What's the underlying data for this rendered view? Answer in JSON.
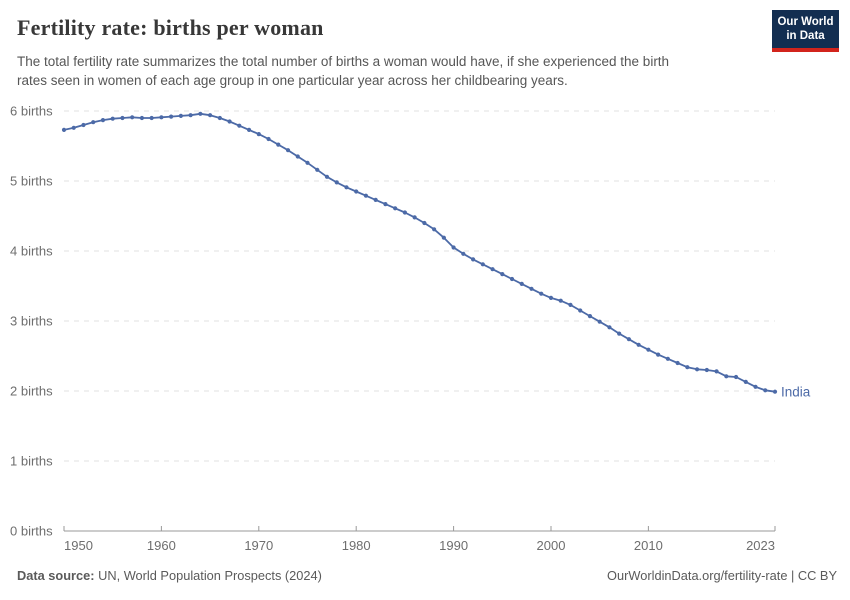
{
  "header": {
    "title": "Fertility rate: births per woman",
    "subtitle_line1": "The total fertility rate summarizes the total number of births a woman would have, if she experienced the birth",
    "subtitle_line2": "rates seen in women of each age group in one particular year across her childbearing years.",
    "logo": {
      "line1": "Our World",
      "line2": "in Data"
    }
  },
  "footer": {
    "source_label": "Data source:",
    "source_value": "UN, World Population Prospects (2024)",
    "credit": "OurWorldinData.org/fertility-rate | CC BY"
  },
  "chart_data": {
    "type": "line",
    "title": "Fertility rate: births per woman",
    "xlabel": "",
    "ylabel": "births",
    "xlim": [
      1950,
      2023
    ],
    "ylim": [
      0,
      6
    ],
    "grid": "horizontal-dashed",
    "legend_position": "end-of-line-label",
    "xticks": [
      1950,
      1960,
      1970,
      1980,
      1990,
      2000,
      2010,
      2023
    ],
    "yticks": [
      {
        "value": 0,
        "label": "0 births"
      },
      {
        "value": 1,
        "label": "1 births"
      },
      {
        "value": 2,
        "label": "2 births"
      },
      {
        "value": 3,
        "label": "3 births"
      },
      {
        "value": 4,
        "label": "4 births"
      },
      {
        "value": 5,
        "label": "5 births"
      },
      {
        "value": 6,
        "label": "6 births"
      }
    ],
    "colors": {
      "line": "#4c6aa7",
      "grid": "#e2e2e2",
      "axis": "#999999",
      "tick_text": "#6e6e6e",
      "logo_bg": "#132e51",
      "logo_accent": "#d2241c"
    },
    "series": [
      {
        "name": "India",
        "color": "#4c6aa7",
        "years": [
          1950,
          1951,
          1952,
          1953,
          1954,
          1955,
          1956,
          1957,
          1958,
          1959,
          1960,
          1961,
          1962,
          1963,
          1964,
          1965,
          1966,
          1967,
          1968,
          1969,
          1970,
          1971,
          1972,
          1973,
          1974,
          1975,
          1976,
          1977,
          1978,
          1979,
          1980,
          1981,
          1982,
          1983,
          1984,
          1985,
          1986,
          1987,
          1988,
          1989,
          1990,
          1991,
          1992,
          1993,
          1994,
          1995,
          1996,
          1997,
          1998,
          1999,
          2000,
          2001,
          2002,
          2003,
          2004,
          2005,
          2006,
          2007,
          2008,
          2009,
          2010,
          2011,
          2012,
          2013,
          2014,
          2015,
          2016,
          2017,
          2018,
          2019,
          2020,
          2021,
          2022,
          2023
        ],
        "values": [
          5.73,
          5.76,
          5.8,
          5.84,
          5.87,
          5.89,
          5.9,
          5.91,
          5.9,
          5.9,
          5.91,
          5.92,
          5.93,
          5.94,
          5.96,
          5.94,
          5.9,
          5.85,
          5.79,
          5.73,
          5.67,
          5.6,
          5.52,
          5.44,
          5.35,
          5.26,
          5.16,
          5.06,
          4.98,
          4.91,
          4.85,
          4.79,
          4.73,
          4.67,
          4.61,
          4.55,
          4.48,
          4.4,
          4.31,
          4.19,
          4.05,
          3.96,
          3.88,
          3.81,
          3.74,
          3.67,
          3.6,
          3.53,
          3.46,
          3.39,
          3.33,
          3.29,
          3.23,
          3.15,
          3.07,
          2.99,
          2.91,
          2.82,
          2.74,
          2.66,
          2.59,
          2.52,
          2.46,
          2.4,
          2.34,
          2.31,
          2.3,
          2.28,
          2.21,
          2.2,
          2.13,
          2.06,
          2.01,
          1.99
        ]
      }
    ]
  }
}
